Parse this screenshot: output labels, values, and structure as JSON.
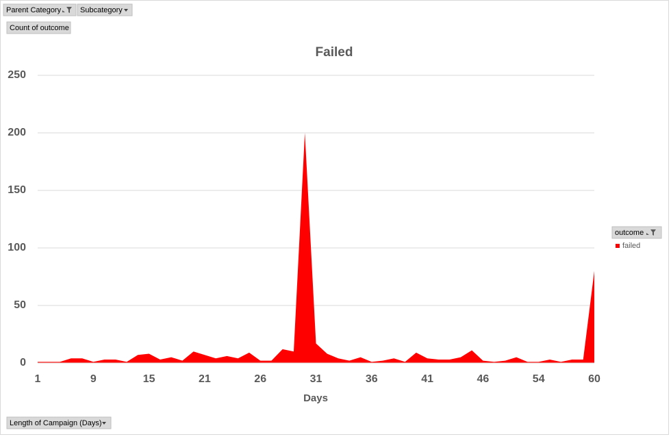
{
  "filters": [
    "Parent Category",
    "Subcategory"
  ],
  "values_field": "Count of outcome",
  "axis_field": "Length of Campaign (Days)",
  "legend_field": "outcome",
  "chart_data": {
    "type": "area",
    "title": "Failed",
    "x_label": "Days",
    "categories": [
      "1",
      null,
      null,
      null,
      null,
      "9",
      null,
      null,
      null,
      null,
      "15",
      null,
      null,
      null,
      null,
      "21",
      null,
      null,
      null,
      null,
      "26",
      null,
      null,
      null,
      null,
      "31",
      null,
      null,
      null,
      null,
      "36",
      null,
      null,
      null,
      null,
      "41",
      null,
      null,
      null,
      null,
      "46",
      null,
      null,
      null,
      null,
      "54",
      null,
      null,
      null,
      null,
      "60"
    ],
    "series": [
      {
        "name": "failed",
        "color": "#ff0000",
        "values": [
          1,
          1,
          1,
          4,
          4,
          1,
          3,
          3,
          1,
          7,
          8,
          3,
          5,
          2,
          10,
          7,
          4,
          6,
          4,
          9,
          2,
          2,
          12,
          10,
          200,
          17,
          8,
          4,
          2,
          5,
          1,
          2,
          4,
          1,
          9,
          4,
          3,
          3,
          5,
          11,
          2,
          1,
          2,
          5,
          1,
          1,
          3,
          1,
          3,
          3,
          80
        ]
      }
    ],
    "ylim": [
      0,
      250
    ],
    "yticks": [
      0,
      50,
      100,
      150,
      200,
      250
    ],
    "grid": true,
    "legend": "right"
  }
}
